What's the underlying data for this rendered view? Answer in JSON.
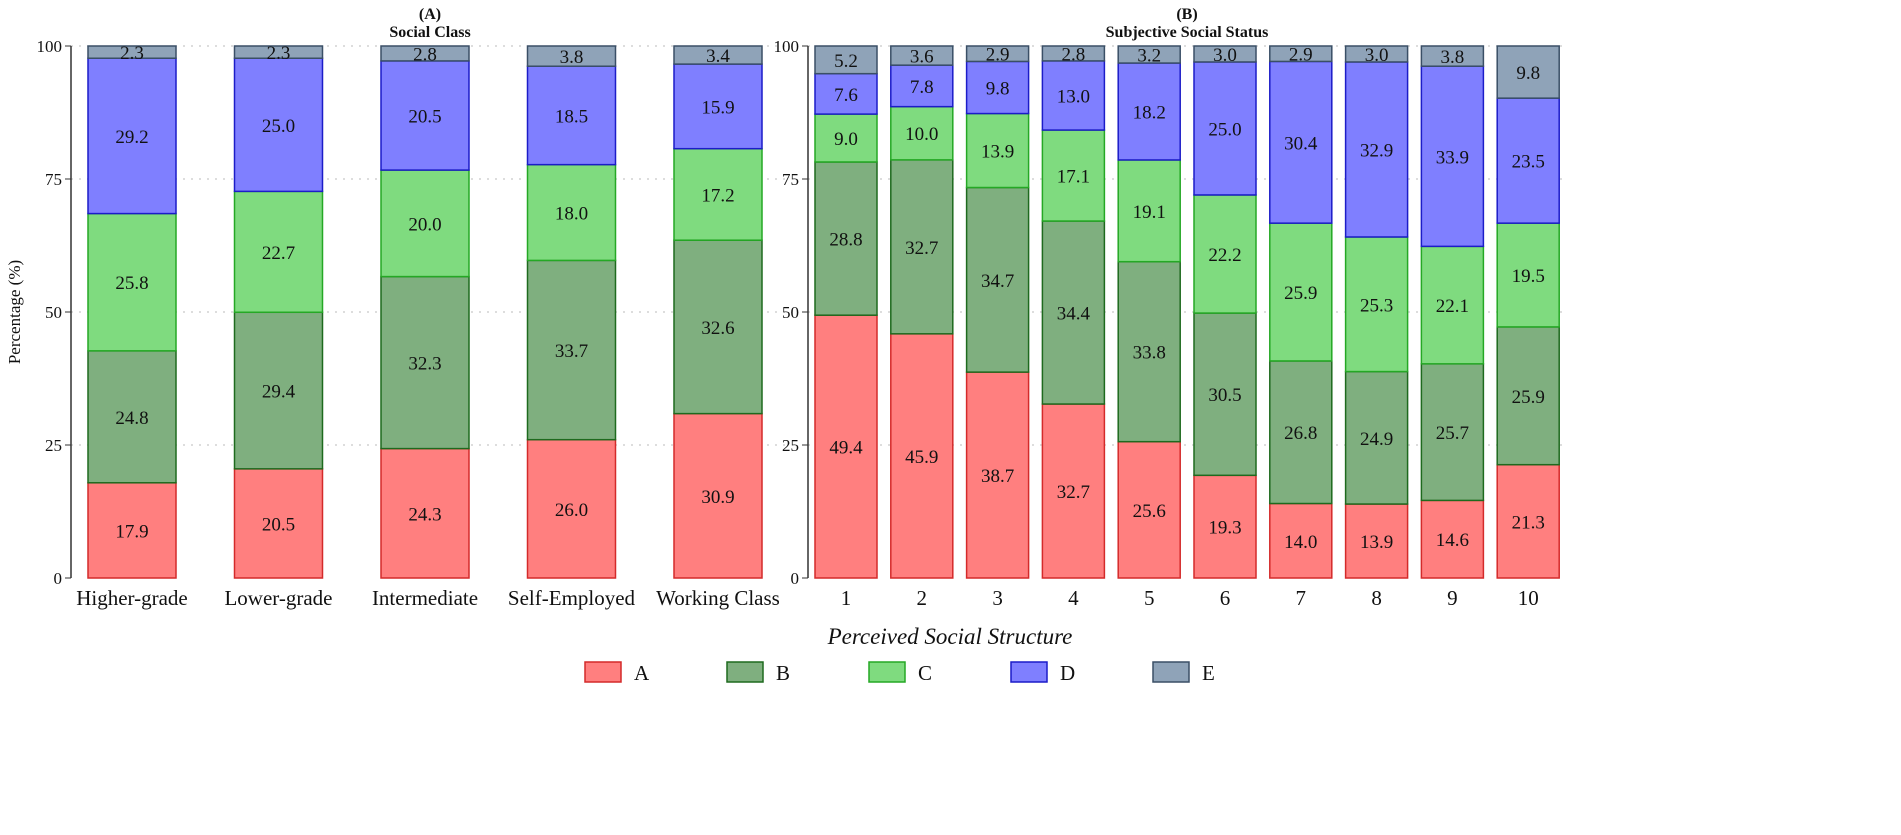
{
  "chart_data": [
    {
      "type": "bar",
      "stacked": true,
      "label": "(A)",
      "title": "Social Class",
      "ylabel": "Percentage (%)",
      "ylim": [
        0,
        100
      ],
      "yticks": [
        0,
        25,
        50,
        75,
        100
      ],
      "grid": true,
      "categories": [
        "Higher-grade",
        "Lower-grade",
        "Intermediate",
        "Self-Employed",
        "Working Class"
      ],
      "series": [
        {
          "name": "A",
          "values": [
            17.9,
            20.5,
            24.3,
            26.0,
            30.9
          ]
        },
        {
          "name": "B",
          "values": [
            24.8,
            29.4,
            32.3,
            33.7,
            32.6
          ]
        },
        {
          "name": "C",
          "values": [
            25.8,
            22.7,
            20.0,
            18.0,
            17.2
          ]
        },
        {
          "name": "D",
          "values": [
            29.2,
            25.0,
            20.5,
            18.5,
            15.9
          ]
        },
        {
          "name": "E",
          "values": [
            2.3,
            2.3,
            2.8,
            3.8,
            3.4
          ]
        }
      ]
    },
    {
      "type": "bar",
      "stacked": true,
      "label": "(B)",
      "title": "Subjective Social Status",
      "ylim": [
        0,
        100
      ],
      "yticks": [
        0,
        25,
        50,
        75,
        100
      ],
      "grid": true,
      "categories": [
        "1",
        "2",
        "3",
        "4",
        "5",
        "6",
        "7",
        "8",
        "9",
        "10"
      ],
      "series": [
        {
          "name": "A",
          "values": [
            49.4,
            45.9,
            38.7,
            32.7,
            25.6,
            19.3,
            14.0,
            13.9,
            14.6,
            21.3
          ]
        },
        {
          "name": "B",
          "values": [
            28.8,
            32.7,
            34.7,
            34.4,
            33.8,
            30.5,
            26.8,
            24.9,
            25.7,
            25.9
          ]
        },
        {
          "name": "C",
          "values": [
            9.0,
            10.0,
            13.9,
            17.1,
            19.1,
            22.2,
            25.9,
            25.3,
            22.1,
            19.5
          ]
        },
        {
          "name": "D",
          "values": [
            7.6,
            7.8,
            9.8,
            13.0,
            18.2,
            25.0,
            30.4,
            32.9,
            33.9,
            23.5
          ]
        },
        {
          "name": "E",
          "values": [
            5.2,
            3.6,
            2.9,
            2.8,
            3.2,
            3.0,
            2.9,
            3.0,
            3.8,
            9.8
          ]
        }
      ]
    }
  ],
  "legend": {
    "title": "Perceived Social Structure",
    "position": "bottom",
    "items": [
      "A",
      "B",
      "C",
      "D",
      "E"
    ]
  },
  "colors": {
    "A": {
      "fill": "#FF7F7F",
      "stroke": "#D42A2A"
    },
    "B": {
      "fill": "#7FAF7F",
      "stroke": "#1E6A1E"
    },
    "C": {
      "fill": "#7FDB7F",
      "stroke": "#25A825"
    },
    "D": {
      "fill": "#7F7FFF",
      "stroke": "#1C1CC8"
    },
    "E": {
      "fill": "#8FA3B8",
      "stroke": "#3A4F66"
    }
  }
}
